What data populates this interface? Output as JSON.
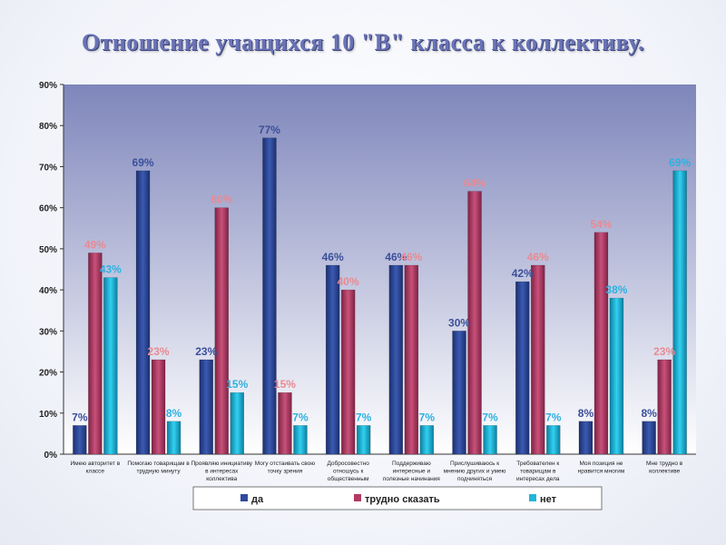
{
  "slide": {
    "title": "Отношение учащихся 10 \"В\" класса к коллективу."
  },
  "chart_data": {
    "type": "bar",
    "title": "Отношение учащихся 10 \"В\" класса к коллективу.",
    "ylim": [
      0,
      90
    ],
    "yticks": [
      "0%",
      "10%",
      "20%",
      "30%",
      "40%",
      "50%",
      "60%",
      "70%",
      "80%",
      "90%"
    ],
    "grid": false,
    "legend_position": "bottom",
    "categories": [
      [
        "Имею авторитет в",
        "классе"
      ],
      [
        "Помогаю товарищам в",
        "трудную минуту"
      ],
      [
        "Проявляю инициативу",
        "в интересах",
        "коллектива"
      ],
      [
        "Могу отстаивать  свою",
        "точку зрения"
      ],
      [
        "Добросовестно",
        "отношусь к",
        "общественным"
      ],
      [
        "Поддерживаю",
        "интересные и",
        "полезные начинания"
      ],
      [
        "Прислушиваюсь к",
        "мнению других и умею",
        "подчиняться"
      ],
      [
        "Требователен к",
        "товарищам в",
        "интересах дела"
      ],
      [
        "Моя позиция не",
        "нравится многим"
      ],
      [
        "Мне трудно в",
        "коллективе"
      ]
    ],
    "series": [
      {
        "name": "да",
        "color": "#2e4a9c",
        "label_color": "#3b4f9a",
        "values": [
          7,
          69,
          23,
          77,
          46,
          46,
          30,
          42,
          8,
          8
        ],
        "labels": [
          "7%",
          "69%",
          "23%",
          "77%",
          "46%",
          "46%",
          "30%",
          "42%",
          "8%",
          "8%"
        ]
      },
      {
        "name": "трудно сказать",
        "color": "#b23a62",
        "label_color": "#e98a93",
        "values": [
          49,
          23,
          60,
          15,
          40,
          46,
          64,
          46,
          54,
          23
        ],
        "labels": [
          "49%",
          "23%",
          "60%",
          "15%",
          "40%",
          "46%",
          "64%",
          "46%",
          "54%",
          "23%"
        ]
      },
      {
        "name": "нет",
        "color": "#22b6d8",
        "label_color": "#2fb1e0",
        "values": [
          43,
          8,
          15,
          7,
          7,
          7,
          7,
          7,
          38,
          69
        ],
        "labels": [
          "43%",
          "8%",
          "15%",
          "7%",
          "7%",
          "7%",
          "7%",
          "7%",
          "38%",
          "69%"
        ]
      }
    ]
  }
}
